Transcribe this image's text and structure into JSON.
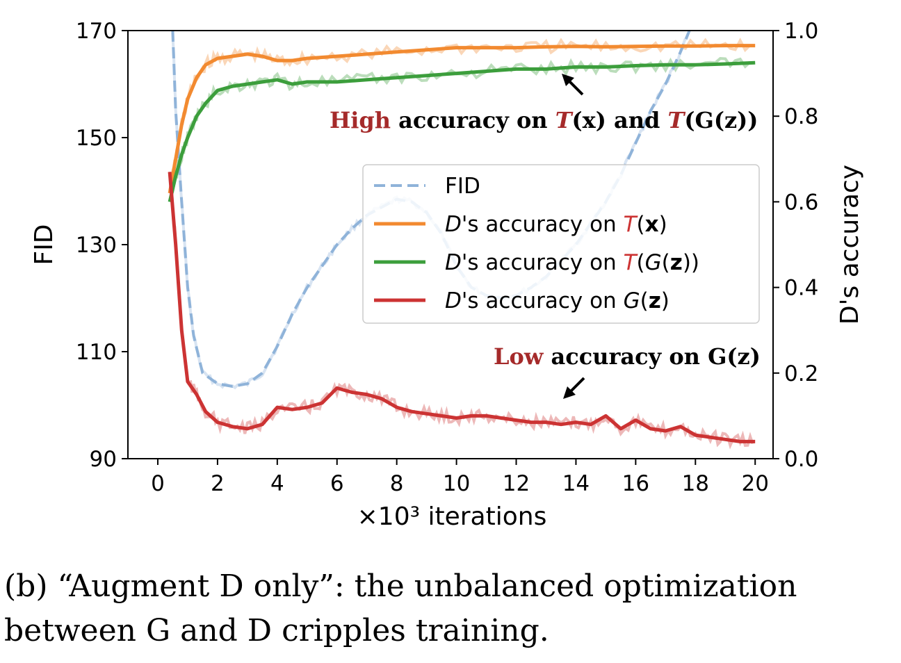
{
  "chart_data": {
    "type": "line",
    "x_label": "×10³ iterations",
    "x_ticks": [
      "0",
      "2",
      "4",
      "6",
      "8",
      "10",
      "12",
      "14",
      "16",
      "18",
      "20"
    ],
    "xlim": [
      -1,
      20.6
    ],
    "y_left_label": "FID",
    "y_left_ticks": [
      "90",
      "110",
      "130",
      "150",
      "170"
    ],
    "y_left_lim": [
      90,
      170
    ],
    "y_right_label": "D's accuracy",
    "y_right_ticks": [
      "0.0",
      "0.2",
      "0.4",
      "0.6",
      "0.8",
      "1.0"
    ],
    "y_right_lim": [
      0.0,
      1.0
    ],
    "legend_position": "center-right",
    "series": [
      {
        "name": "FID",
        "axis": "left",
        "color": "#8fb3d9",
        "style": "dashed",
        "x": [
          0.5,
          0.6,
          0.8,
          1.0,
          1.2,
          1.5,
          2.0,
          2.5,
          3.0,
          3.5,
          4.0,
          4.5,
          5.0,
          5.5,
          6.0,
          6.5,
          7.0,
          7.5,
          8.0,
          8.5,
          9.0,
          9.5,
          10.0,
          10.5,
          11.0,
          11.5,
          12.0,
          12.5,
          13.0,
          13.5,
          14.0,
          14.5,
          15.0,
          15.5,
          16.0,
          16.5,
          17.0,
          17.5,
          17.8
        ],
        "y": [
          170,
          155,
          138,
          122,
          113,
          106,
          104,
          103.5,
          104,
          106,
          111,
          117,
          122,
          126,
          130,
          133,
          135.5,
          137,
          138.5,
          138,
          136,
          132,
          126,
          122,
          120.5,
          120,
          120.5,
          122,
          124,
          127,
          130,
          134,
          138,
          143,
          149,
          155,
          160,
          166,
          170
        ]
      },
      {
        "name": "D's accuracy on T(x)",
        "axis": "right",
        "color": "#f28a30",
        "style": "solid",
        "x": [
          0.4,
          0.6,
          0.8,
          1.0,
          1.3,
          1.6,
          2.0,
          2.5,
          3.0,
          3.5,
          4.0,
          4.5,
          5.0,
          6.0,
          7.0,
          8.0,
          9.0,
          10.0,
          11.0,
          12.0,
          13.0,
          14.0,
          15.0,
          16.0,
          17.0,
          18.0,
          19.0,
          20.0
        ],
        "y": [
          0.62,
          0.7,
          0.78,
          0.84,
          0.89,
          0.92,
          0.935,
          0.94,
          0.945,
          0.94,
          0.93,
          0.93,
          0.935,
          0.94,
          0.945,
          0.95,
          0.955,
          0.96,
          0.96,
          0.96,
          0.962,
          0.963,
          0.962,
          0.963,
          0.964,
          0.964,
          0.965,
          0.965
        ]
      },
      {
        "name": "D's accuracy on T(G(z))",
        "axis": "right",
        "color": "#3c9e3c",
        "style": "solid",
        "x": [
          0.4,
          0.6,
          0.8,
          1.0,
          1.3,
          1.6,
          2.0,
          2.5,
          3.0,
          3.5,
          4.0,
          4.5,
          5.0,
          6.0,
          7.0,
          8.0,
          9.0,
          10.0,
          11.0,
          12.0,
          13.0,
          14.0,
          15.0,
          16.0,
          17.0,
          18.0,
          19.0,
          20.0
        ],
        "y": [
          0.6,
          0.66,
          0.71,
          0.75,
          0.8,
          0.83,
          0.86,
          0.87,
          0.875,
          0.88,
          0.885,
          0.875,
          0.88,
          0.88,
          0.885,
          0.89,
          0.895,
          0.9,
          0.905,
          0.91,
          0.91,
          0.915,
          0.915,
          0.918,
          0.92,
          0.92,
          0.922,
          0.925
        ]
      },
      {
        "name": "D's accuracy on G(z)",
        "axis": "right",
        "color": "#cc3333",
        "style": "solid",
        "x": [
          0.4,
          0.6,
          0.8,
          1.0,
          1.3,
          1.6,
          2.0,
          2.5,
          3.0,
          3.5,
          4.0,
          4.5,
          5.0,
          5.5,
          6.0,
          6.5,
          7.0,
          7.5,
          8.0,
          8.5,
          9.0,
          9.5,
          10.0,
          10.5,
          11.0,
          11.5,
          12.0,
          12.5,
          13.0,
          13.5,
          14.0,
          14.5,
          15.0,
          15.5,
          16.0,
          16.5,
          17.0,
          17.5,
          18.0,
          18.5,
          19.0,
          19.5,
          20.0
        ],
        "y": [
          0.67,
          0.5,
          0.3,
          0.18,
          0.15,
          0.11,
          0.085,
          0.075,
          0.07,
          0.08,
          0.12,
          0.115,
          0.12,
          0.13,
          0.165,
          0.155,
          0.15,
          0.14,
          0.12,
          0.11,
          0.105,
          0.1,
          0.095,
          0.1,
          0.1,
          0.095,
          0.09,
          0.085,
          0.085,
          0.08,
          0.085,
          0.08,
          0.1,
          0.07,
          0.09,
          0.07,
          0.065,
          0.075,
          0.055,
          0.05,
          0.045,
          0.04,
          0.04
        ]
      }
    ],
    "legend": [
      {
        "key": "fid",
        "pre": "",
        "italic": "",
        "mid": "FID",
        "emph_open": "",
        "bold": "",
        "close": ""
      },
      {
        "key": "tx",
        "italic": "D",
        "mid": "'s accuracy on ",
        "red": "T",
        "open": "(",
        "inner_italic": "",
        "bold": "x",
        "close": ")"
      },
      {
        "key": "tgz",
        "italic": "D",
        "mid": "'s accuracy on ",
        "red": "T",
        "open": "(",
        "inner_italic": "G",
        "inner_open": "(",
        "bold": "z",
        "close": "))"
      },
      {
        "key": "gz",
        "italic": "D",
        "mid": "'s accuracy on ",
        "red": "",
        "open": "",
        "inner_italic": "G",
        "inner_open": "(",
        "bold": "z",
        "close": ")"
      }
    ],
    "annotations": {
      "high": {
        "red": "High",
        "rest1": " accuracy on ",
        "t1": "T",
        "p1": "(x) and ",
        "t2": "T",
        "p2": "(G(z))"
      },
      "low": {
        "red": "Low",
        "rest": " accuracy on G(z)"
      }
    }
  },
  "caption": {
    "line1": "(b) “Augment D only”: the unbalanced optimization",
    "line2": "between G and D cripples training."
  }
}
